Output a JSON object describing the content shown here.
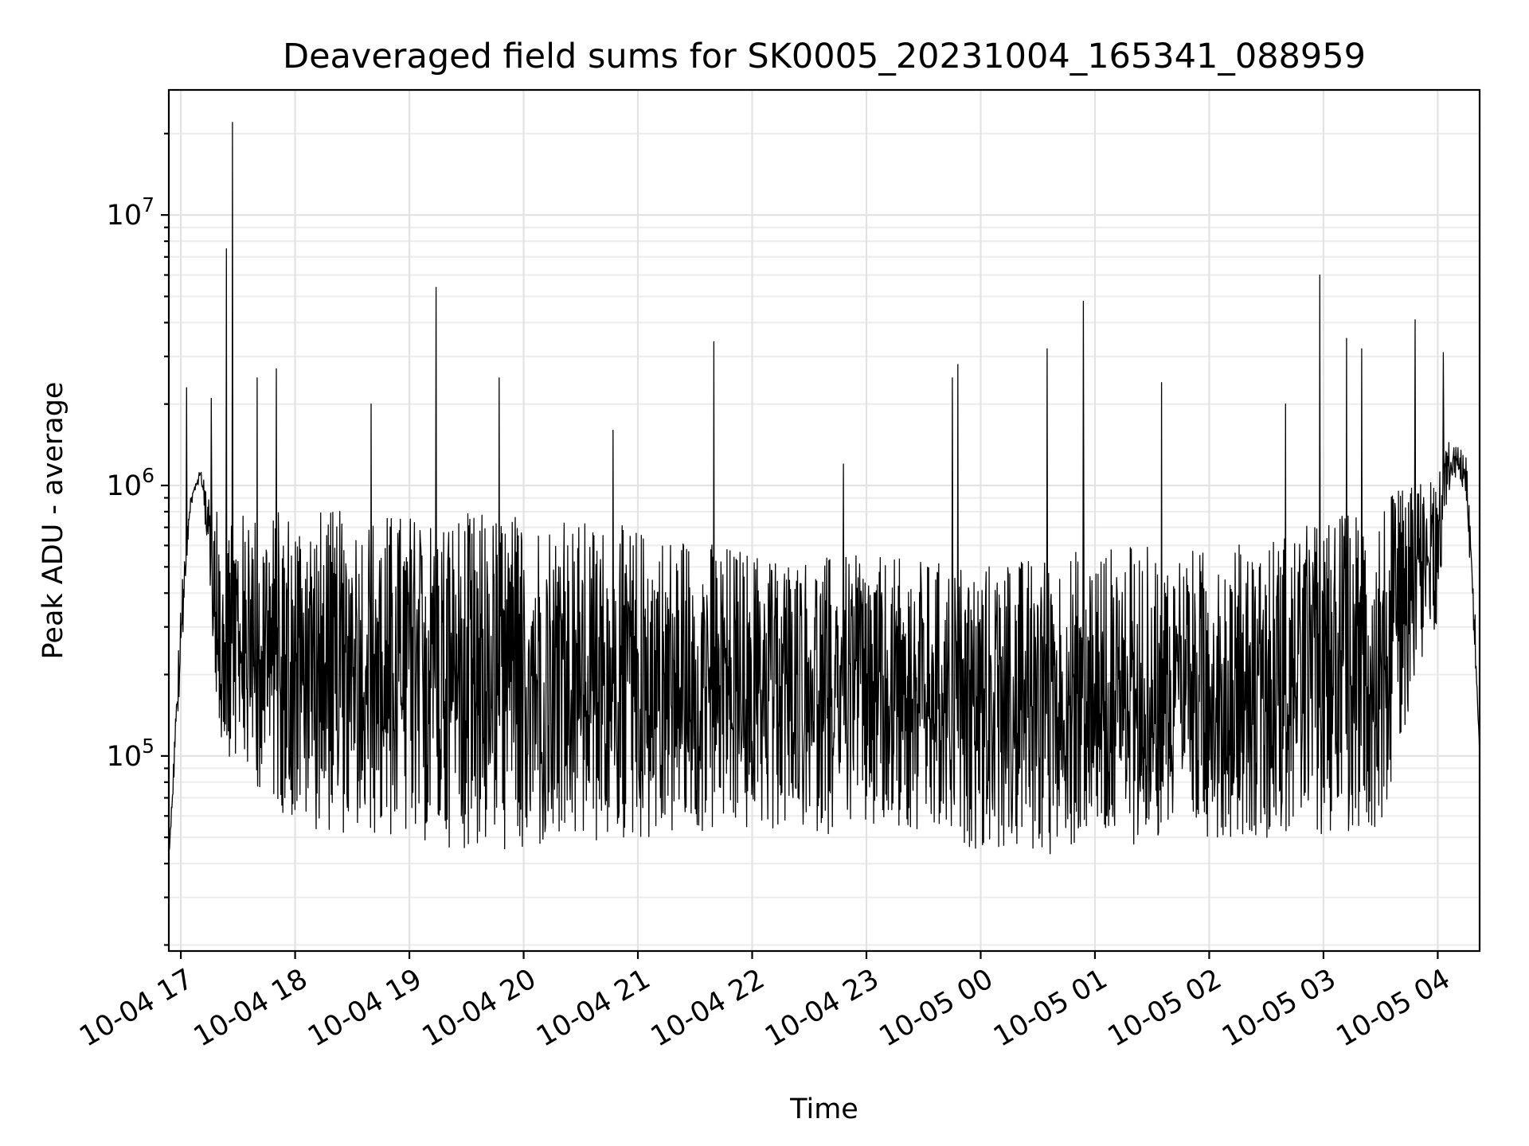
{
  "chart_data": {
    "type": "line",
    "title": "Deaveraged field sums for SK0005_20231004_165341_088959",
    "xlabel": "Time",
    "ylabel": "Peak ADU - average",
    "yscale": "log",
    "ylim": [
      19000,
      29000000
    ],
    "xlim": [
      "2023-10-04 16:53:41",
      "2023-10-05 04:22:00"
    ],
    "grid": true,
    "x_ticks": [
      "10-04 17",
      "10-04 18",
      "10-04 19",
      "10-04 20",
      "10-04 21",
      "10-04 22",
      "10-04 23",
      "10-05 00",
      "10-05 01",
      "10-05 02",
      "10-05 03",
      "10-05 04"
    ],
    "x_tick_values": [
      "2023-10-04 17:00",
      "2023-10-04 18:00",
      "2023-10-04 19:00",
      "2023-10-04 20:00",
      "2023-10-04 21:00",
      "2023-10-04 22:00",
      "2023-10-04 23:00",
      "2023-10-05 00:00",
      "2023-10-05 01:00",
      "2023-10-05 02:00",
      "2023-10-05 03:00",
      "2023-10-05 04:00"
    ],
    "y_ticks": [
      {
        "value": 100000,
        "base": "10",
        "exp": "5"
      },
      {
        "value": 1000000,
        "base": "10",
        "exp": "6"
      },
      {
        "value": 10000000,
        "base": "10",
        "exp": "7"
      }
    ],
    "series": [
      {
        "color": "#000000",
        "x": [
          "2023-10-04 16:54",
          "2023-10-04 17:00",
          "2023-10-04 17:05",
          "2023-10-04 17:10",
          "2023-10-04 17:15",
          "2023-10-04 17:18",
          "2023-10-04 17:21",
          "2023-10-04 17:30",
          "2023-10-04 17:45",
          "2023-10-04 18:00",
          "2023-10-04 18:30",
          "2023-10-04 19:00",
          "2023-10-04 19:30",
          "2023-10-04 20:00",
          "2023-10-04 20:30",
          "2023-10-04 21:00",
          "2023-10-04 21:30",
          "2023-10-04 22:00",
          "2023-10-04 22:30",
          "2023-10-04 23:00",
          "2023-10-04 23:30",
          "2023-10-05 00:00",
          "2023-10-05 00:30",
          "2023-10-05 01:00",
          "2023-10-05 01:30",
          "2023-10-05 02:00",
          "2023-10-05 02:30",
          "2023-10-05 03:00",
          "2023-10-05 03:30",
          "2023-10-05 04:00",
          "2023-10-05 04:05",
          "2023-10-05 04:10",
          "2023-10-05 04:15",
          "2023-10-05 04:20",
          "2023-10-05 04:22"
        ],
        "lower": [
          45000,
          200000,
          820000,
          1050000,
          500000,
          150000,
          110000,
          90000,
          70000,
          55000,
          50000,
          48000,
          45000,
          42000,
          45000,
          48000,
          50000,
          52000,
          52000,
          50000,
          48000,
          45000,
          42000,
          45000,
          48000,
          50000,
          50000,
          50000,
          55000,
          300000,
          900000,
          1100000,
          900000,
          200000,
          100000
        ],
        "upper": [
          45000,
          400000,
          900000,
          1150000,
          1000000,
          800000,
          800000,
          800000,
          800000,
          850000,
          800000,
          800000,
          800000,
          800000,
          750000,
          700000,
          650000,
          580000,
          550000,
          550000,
          530000,
          520000,
          550000,
          600000,
          600000,
          580000,
          650000,
          750000,
          900000,
          1100000,
          1500000,
          1400000,
          1300000,
          300000,
          100000
        ],
        "spikes": [
          {
            "x": "2023-10-04 17:03",
            "y": 2300000
          },
          {
            "x": "2023-10-04 17:16",
            "y": 2100000
          },
          {
            "x": "2023-10-04 17:24",
            "y": 7500000
          },
          {
            "x": "2023-10-04 17:27",
            "y": 22000000
          },
          {
            "x": "2023-10-04 17:40",
            "y": 2500000
          },
          {
            "x": "2023-10-04 17:50",
            "y": 2700000
          },
          {
            "x": "2023-10-04 18:40",
            "y": 2000000
          },
          {
            "x": "2023-10-04 19:14",
            "y": 5400000
          },
          {
            "x": "2023-10-04 19:47",
            "y": 2500000
          },
          {
            "x": "2023-10-04 20:47",
            "y": 1600000
          },
          {
            "x": "2023-10-04 21:40",
            "y": 3400000
          },
          {
            "x": "2023-10-04 22:48",
            "y": 1200000
          },
          {
            "x": "2023-10-04 23:45",
            "y": 2500000
          },
          {
            "x": "2023-10-04 23:48",
            "y": 2800000
          },
          {
            "x": "2023-10-05 00:35",
            "y": 3200000
          },
          {
            "x": "2023-10-05 00:54",
            "y": 4800000
          },
          {
            "x": "2023-10-05 01:35",
            "y": 2400000
          },
          {
            "x": "2023-10-05 02:40",
            "y": 2000000
          },
          {
            "x": "2023-10-05 02:58",
            "y": 6000000
          },
          {
            "x": "2023-10-05 03:12",
            "y": 3500000
          },
          {
            "x": "2023-10-05 03:20",
            "y": 3200000
          },
          {
            "x": "2023-10-05 03:48",
            "y": 4100000
          },
          {
            "x": "2023-10-05 04:03",
            "y": 3100000
          }
        ]
      }
    ]
  }
}
